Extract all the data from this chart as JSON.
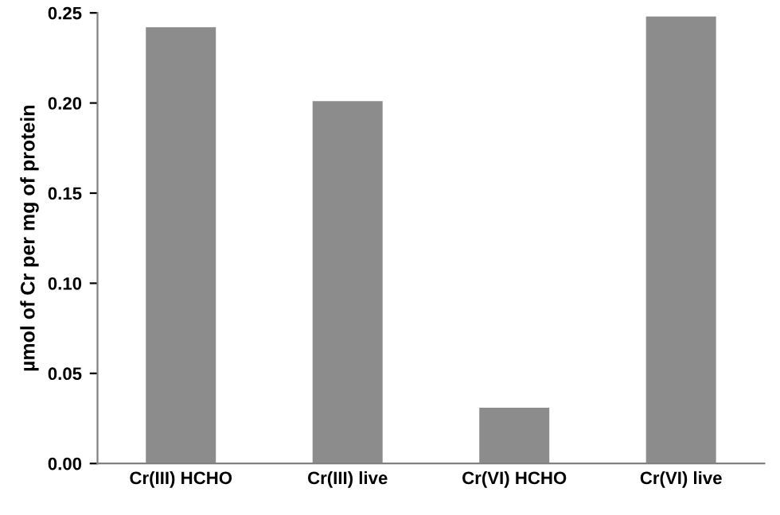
{
  "chart_data": {
    "type": "bar",
    "ylabel": "µmol of Cr per mg of protein",
    "categories": [
      "Cr(III) HCHO",
      "Cr(III) live",
      "Cr(VI) HCHO",
      "Cr(VI) live"
    ],
    "values": [
      0.242,
      0.201,
      0.031,
      0.248
    ],
    "color": "#8c8c8c",
    "ylim": [
      0,
      0.25
    ],
    "yticks": [
      {
        "value": 0,
        "label": "0.00"
      },
      {
        "value": 0.05,
        "label": "0.05"
      },
      {
        "value": 0.1,
        "label": "0.10"
      },
      {
        "value": 0.15,
        "label": "0.15"
      },
      {
        "value": 0.2,
        "label": "0.20"
      },
      {
        "value": 0.25,
        "label": "0.25"
      }
    ],
    "grid": false
  }
}
